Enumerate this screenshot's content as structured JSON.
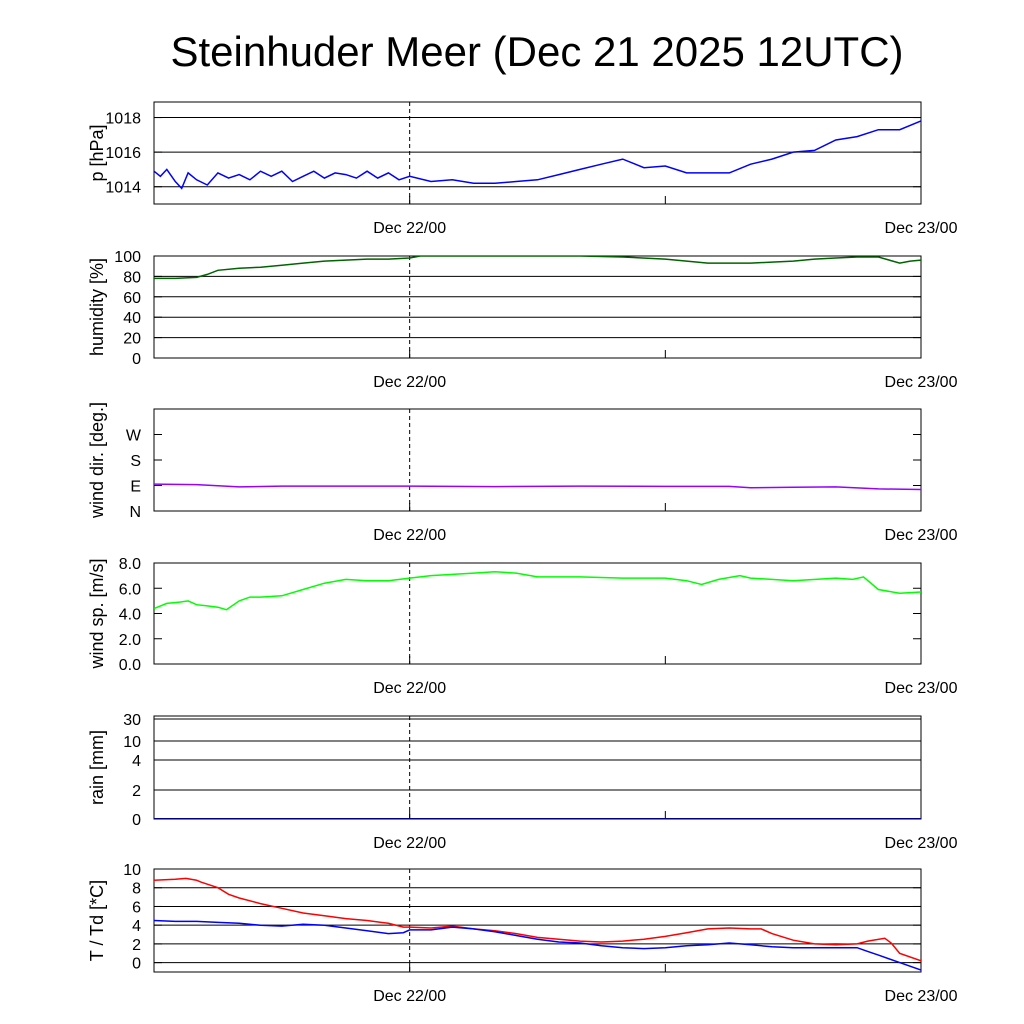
{
  "title": "Steinhuder Meer (Dec 21 2025 12UTC)",
  "x_axis": {
    "unit": "hours since Dec 21 12UTC",
    "range": [
      0,
      36
    ],
    "tick_labels": [
      {
        "h": 12,
        "label": "Dec 22/00"
      },
      {
        "h": 36,
        "label": "Dec 23/00"
      }
    ],
    "minor_ticks": [
      24
    ],
    "dashed_line_at": 12
  },
  "chart_data": [
    {
      "type": "line",
      "name": "pressure",
      "ylabel": "p [hPa]",
      "ylim": [
        1013.0,
        1018.9
      ],
      "yticks": [
        1014,
        1016,
        1018
      ],
      "ytick_labels": [
        "1014",
        "1016",
        "1018"
      ],
      "grid": [
        1014,
        1016,
        1018
      ],
      "color": "#0000ff",
      "series": [
        {
          "name": "p",
          "x": [
            0,
            0.3,
            0.6,
            1,
            1.3,
            1.6,
            2,
            2.5,
            3,
            3.5,
            4,
            4.5,
            5,
            5.5,
            6,
            6.5,
            7,
            7.5,
            8,
            8.5,
            9,
            9.5,
            10,
            10.5,
            11,
            11.5,
            12,
            13,
            14,
            15,
            16,
            17,
            18,
            19,
            20,
            21,
            22,
            23,
            24,
            25,
            26,
            27,
            28,
            29,
            30,
            31,
            32,
            33,
            34,
            35,
            36
          ],
          "y": [
            1014.9,
            1014.6,
            1015.0,
            1014.3,
            1013.9,
            1014.8,
            1014.4,
            1014.1,
            1014.8,
            1014.5,
            1014.7,
            1014.4,
            1014.9,
            1014.6,
            1014.9,
            1014.3,
            1014.6,
            1014.9,
            1014.5,
            1014.8,
            1014.7,
            1014.5,
            1014.9,
            1014.5,
            1014.8,
            1014.4,
            1014.6,
            1014.3,
            1014.4,
            1014.2,
            1014.2,
            1014.3,
            1014.4,
            1014.7,
            1015.0,
            1015.3,
            1015.6,
            1015.1,
            1015.2,
            1014.8,
            1014.8,
            1014.8,
            1015.3,
            1015.6,
            1016.0,
            1016.1,
            1016.7,
            1016.9,
            1017.3,
            1017.3,
            1017.8
          ]
        }
      ]
    },
    {
      "type": "line",
      "name": "humidity",
      "ylabel": "humidity [%]",
      "ylim": [
        0,
        100
      ],
      "yticks": [
        0,
        20,
        40,
        60,
        80,
        100
      ],
      "ytick_labels": [
        "0",
        "20",
        "40",
        "60",
        "80",
        "100"
      ],
      "grid": [
        20,
        40,
        60,
        80,
        100
      ],
      "color": "#006400",
      "series": [
        {
          "name": "rh",
          "x": [
            0,
            1,
            2,
            2.5,
            3,
            4,
            5,
            6,
            7,
            8,
            9,
            10,
            11,
            12,
            12.5,
            14,
            16,
            18,
            20,
            22,
            24,
            25,
            26,
            27,
            28,
            29,
            30,
            31,
            32,
            33,
            34,
            35,
            35.5,
            36
          ],
          "y": [
            78,
            78,
            79,
            82,
            86,
            88,
            89,
            91,
            93,
            95,
            96,
            97,
            97,
            98,
            100,
            100,
            100,
            100,
            100,
            99,
            97,
            95,
            93,
            93,
            93,
            94,
            95,
            97,
            98,
            99,
            99,
            93,
            95,
            96
          ]
        }
      ]
    },
    {
      "type": "line",
      "name": "wind_direction",
      "ylabel": "wind dir. [deg.]",
      "ylim": [
        0,
        360
      ],
      "yticks": [
        0,
        90,
        180,
        270
      ],
      "ytick_labels": [
        "N",
        "E",
        "S",
        "W"
      ],
      "grid": [],
      "color": "#9900ff",
      "series": [
        {
          "name": "dir",
          "x": [
            0,
            2,
            4,
            6,
            8,
            12,
            16,
            20,
            24,
            27,
            28,
            30,
            32,
            34,
            36
          ],
          "y": [
            95,
            93,
            85,
            88,
            88,
            88,
            86,
            88,
            87,
            87,
            82,
            84,
            85,
            78,
            76
          ]
        }
      ]
    },
    {
      "type": "line",
      "name": "wind_speed",
      "ylabel": "wind sp. [m/s]",
      "ylim": [
        0,
        8
      ],
      "yticks": [
        0,
        2,
        4,
        6,
        8
      ],
      "ytick_labels": [
        "0.0",
        "2.0",
        "4.0",
        "6.0",
        "8.0"
      ],
      "grid": [],
      "color": "#00ff00",
      "series": [
        {
          "name": "ff",
          "x": [
            0,
            0.6,
            1.2,
            1.6,
            2,
            2.5,
            3,
            3.4,
            4,
            4.5,
            5,
            6,
            7,
            8,
            9,
            10,
            11,
            12,
            13,
            14,
            15,
            16,
            17,
            18,
            20,
            22,
            24,
            25,
            25.7,
            26.5,
            27.5,
            28,
            30,
            32,
            32.8,
            33.3,
            34,
            35,
            36
          ],
          "y": [
            4.4,
            4.8,
            4.9,
            5.0,
            4.7,
            4.6,
            4.5,
            4.3,
            5.0,
            5.3,
            5.3,
            5.4,
            5.9,
            6.4,
            6.7,
            6.6,
            6.6,
            6.8,
            7.0,
            7.1,
            7.2,
            7.3,
            7.2,
            6.9,
            6.9,
            6.8,
            6.8,
            6.6,
            6.3,
            6.7,
            7.0,
            6.8,
            6.6,
            6.8,
            6.7,
            6.9,
            5.9,
            5.6,
            5.7
          ]
        }
      ]
    },
    {
      "type": "line",
      "name": "rain",
      "ylabel": "rain [mm]",
      "ylim": [
        0,
        30
      ],
      "yticks": [
        0,
        2,
        4,
        10,
        30
      ],
      "ytick_labels": [
        "0",
        "2",
        "4",
        "10",
        "30"
      ],
      "grid": [
        2,
        4,
        10,
        30
      ],
      "color": "#000080",
      "series": [
        {
          "name": "rr",
          "x": [
            0,
            36
          ],
          "y": [
            0,
            0
          ]
        }
      ]
    },
    {
      "type": "line",
      "name": "temperature",
      "ylabel": "T / Td [*C]",
      "ylim": [
        -1,
        10
      ],
      "yticks": [
        0,
        2,
        4,
        6,
        8,
        10
      ],
      "ytick_labels": [
        "0",
        "2",
        "4",
        "6",
        "8",
        "10"
      ],
      "grid": [
        0,
        2,
        4,
        6,
        8,
        10
      ],
      "series": [
        {
          "name": "T",
          "color": "#ff0000",
          "x": [
            0,
            1,
            1.5,
            2,
            2.2,
            3,
            3.5,
            4,
            5,
            6,
            7,
            8,
            9,
            10,
            11,
            11.7,
            12,
            13,
            14,
            15,
            16,
            17,
            18,
            19,
            20,
            21,
            22,
            23,
            24,
            25,
            26,
            27,
            28,
            28.5,
            29,
            30,
            31,
            32,
            33,
            33.5,
            34.3,
            34.6,
            35,
            36
          ],
          "y": [
            8.8,
            8.9,
            9.0,
            8.8,
            8.6,
            8.0,
            7.3,
            6.9,
            6.3,
            5.8,
            5.3,
            5.0,
            4.7,
            4.5,
            4.2,
            3.8,
            3.8,
            3.7,
            3.9,
            3.6,
            3.4,
            3.1,
            2.7,
            2.5,
            2.3,
            2.2,
            2.3,
            2.5,
            2.8,
            3.2,
            3.6,
            3.7,
            3.6,
            3.6,
            3.1,
            2.4,
            2.0,
            1.9,
            2.0,
            2.3,
            2.6,
            2.1,
            1.0,
            0.2
          ]
        },
        {
          "name": "Td",
          "color": "#0000ff",
          "x": [
            0,
            1,
            2,
            3,
            4,
            5,
            6,
            7,
            8,
            9,
            10,
            11,
            11.7,
            12,
            13,
            14,
            15,
            16,
            17,
            18,
            19,
            20,
            21,
            22,
            23,
            24,
            25,
            26,
            27,
            28,
            29,
            30,
            31,
            32,
            33,
            33.5,
            34,
            35,
            36
          ],
          "y": [
            4.5,
            4.4,
            4.4,
            4.3,
            4.2,
            4.0,
            3.9,
            4.1,
            4.0,
            3.7,
            3.4,
            3.1,
            3.2,
            3.5,
            3.5,
            3.8,
            3.6,
            3.3,
            2.9,
            2.5,
            2.2,
            2.1,
            1.8,
            1.6,
            1.5,
            1.6,
            1.8,
            1.9,
            2.1,
            1.9,
            1.7,
            1.6,
            1.6,
            1.6,
            1.6,
            1.2,
            0.8,
            0.0,
            -0.8
          ]
        }
      ]
    }
  ]
}
